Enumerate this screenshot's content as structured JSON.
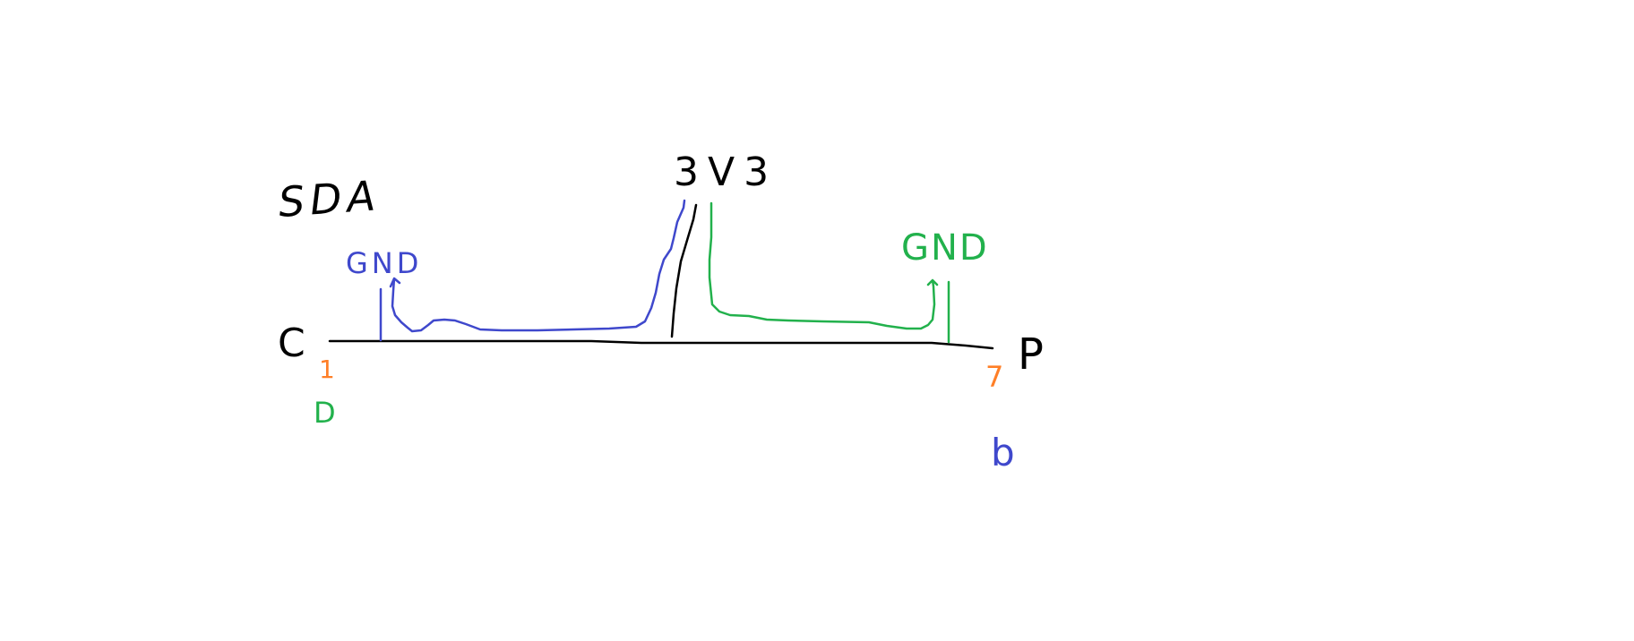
{
  "colors": {
    "background": "#ffffff",
    "ink": "#000000",
    "blue": "#3f48cc",
    "green": "#22b14c",
    "orange": "#ff7f27"
  },
  "labels": {
    "sda": "SDA",
    "vcc": "3V3",
    "gnd_left": "GND",
    "gnd_right": "GND",
    "left_connector": "C",
    "right_connector": "P",
    "left_orange_mark": "1",
    "left_green_mark": "D",
    "right_orange_mark": "7",
    "right_blue_mark": "b"
  }
}
